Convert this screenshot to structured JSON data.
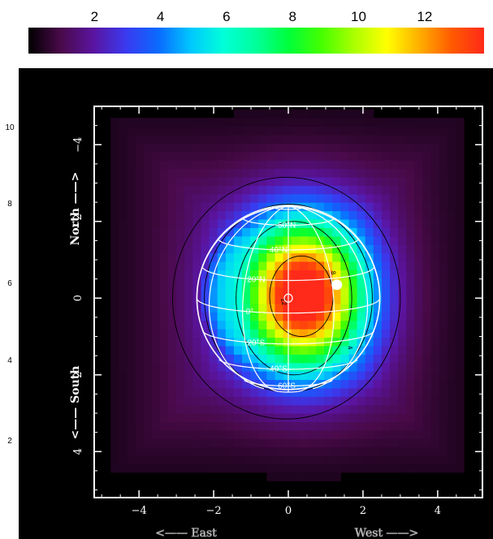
{
  "chart_data": {
    "type": "heatmap",
    "colorbar": {
      "ticks": [
        "2",
        "4",
        "6",
        "8",
        "10",
        "12"
      ],
      "range": [
        0,
        13.8
      ],
      "colors": [
        "#000000",
        "#4a0a4a",
        "#5a14a0",
        "#3a3af0",
        "#0a6bff",
        "#00c8ff",
        "#00ffd8",
        "#00ff9a",
        "#00ff3a",
        "#44ff00",
        "#aaff00",
        "#ffff00",
        "#ffb000",
        "#ff5a00",
        "#ff2a1a"
      ]
    },
    "xticks": [
      "−4",
      "−2",
      "0",
      "2",
      "4"
    ],
    "yticks": [
      "−4",
      "−2",
      "0",
      "2",
      "4"
    ],
    "xlim": [
      -5.2,
      5.2
    ],
    "ylim": [
      -5.2,
      5
    ],
    "xlabel_left": "<—— East",
    "xlabel_right": "West ——>",
    "ylabel_top": "North ——>",
    "ylabel_bottom": "<—— South",
    "edge_ticks": [
      "10",
      "8",
      "6",
      "4",
      "2"
    ],
    "field": {
      "peak_value": 13.5,
      "peak_center": [
        0.4,
        0.1
      ],
      "width": [
        1.55,
        1.8
      ],
      "disk_radius": 2.45,
      "outer_radius": 3.15
    },
    "contours": [
      {
        "value": "12",
        "label": true
      },
      {
        "value": "8",
        "label": true
      },
      {
        "value": "4",
        "label": true
      }
    ],
    "planet": {
      "radius": 2.45,
      "latitudes": [
        "60°N",
        "40°N",
        "20°N",
        "0°",
        "20°S",
        "40°S",
        "60°S"
      ]
    },
    "marker": {
      "x": 1.3,
      "y": 0.35,
      "color": "#ffffff"
    },
    "colors": {
      "frame": "#ffffff",
      "background": "#000000",
      "grid": "#ffffff",
      "contour": "#000000"
    }
  }
}
